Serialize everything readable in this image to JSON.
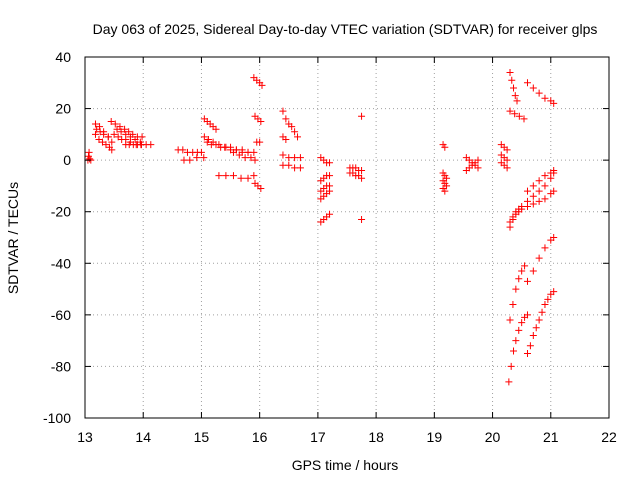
{
  "chart_data": {
    "type": "scatter",
    "title": "Day 063 of 2025, Sidereal Day-to-day VTEC variation (SDTVAR) for receiver glps",
    "xlabel": "GPS time / hours",
    "ylabel": "SDTVAR / TECUs",
    "xlim": [
      13,
      22
    ],
    "ylim": [
      -100,
      40
    ],
    "xticks": [
      "13",
      "14",
      "15",
      "16",
      "17",
      "18",
      "19",
      "20",
      "21",
      "22"
    ],
    "yticks": [
      "40",
      "20",
      "0",
      "-20",
      "-40",
      "-60",
      "-80",
      "-100"
    ],
    "grid": true,
    "marker": "+",
    "marker_color": "#ff0000",
    "series": [
      {
        "name": "s01",
        "x": [
          13.05,
          13.06,
          13.07,
          13.08,
          13.1
        ],
        "y": [
          0,
          1.5,
          3,
          0.5,
          0
        ]
      },
      {
        "name": "s02",
        "x": [
          13.18,
          13.25,
          13.32,
          13.4,
          13.46
        ],
        "y": [
          14,
          13,
          11,
          9,
          7
        ]
      },
      {
        "name": "s03",
        "x": [
          13.18,
          13.24,
          13.3,
          13.36,
          13.42,
          13.46
        ],
        "y": [
          10,
          8,
          7,
          6,
          5,
          4
        ]
      },
      {
        "name": "s04",
        "x": [
          13.2,
          13.26,
          13.32,
          13.4
        ],
        "y": [
          12,
          11,
          10,
          9
        ]
      },
      {
        "name": "s05",
        "x": [
          13.45,
          13.52,
          13.6,
          13.68,
          13.75,
          13.82,
          13.9,
          13.98
        ],
        "y": [
          15,
          14,
          13,
          12,
          11,
          10,
          9,
          9
        ]
      },
      {
        "name": "s06",
        "x": [
          13.55,
          13.62,
          13.7,
          13.78,
          13.86,
          13.95,
          14.05,
          14.13
        ],
        "y": [
          12,
          11,
          10,
          9,
          8,
          7,
          6,
          6
        ]
      },
      {
        "name": "s07",
        "x": [
          13.5,
          13.57,
          13.63,
          13.7,
          13.78,
          13.88,
          13.96
        ],
        "y": [
          10,
          9,
          8,
          8,
          7,
          6,
          6
        ]
      },
      {
        "name": "s08",
        "x": [
          13.7,
          13.76,
          13.83,
          13.9,
          13.97
        ],
        "y": [
          6,
          6,
          6,
          6,
          6
        ]
      },
      {
        "name": "s09",
        "x": [
          14.6,
          14.68,
          14.76,
          14.85,
          14.93,
          15.0
        ],
        "y": [
          4,
          4,
          3,
          3,
          3,
          3
        ]
      },
      {
        "name": "s10",
        "x": [
          14.7,
          14.8,
          14.92,
          15.04
        ],
        "y": [
          0,
          0,
          1,
          1
        ]
      },
      {
        "name": "s11",
        "x": [
          15.05,
          15.1,
          15.15,
          15.2,
          15.25
        ],
        "y": [
          16,
          15,
          14,
          13,
          12
        ]
      },
      {
        "name": "s12",
        "x": [
          15.05,
          15.12,
          15.2,
          15.3,
          15.4,
          15.5,
          15.6,
          15.7,
          15.8,
          15.9
        ],
        "y": [
          9,
          8,
          7,
          6,
          5,
          5,
          4,
          4,
          3,
          3
        ]
      },
      {
        "name": "s13",
        "x": [
          15.1,
          15.17,
          15.25,
          15.33,
          15.42,
          15.5,
          15.6,
          15.7,
          15.8
        ],
        "y": [
          7,
          6,
          6,
          5,
          5,
          4,
          4,
          3,
          3
        ]
      },
      {
        "name": "s14",
        "x": [
          15.3,
          15.42,
          15.55,
          15.68,
          15.8,
          15.9
        ],
        "y": [
          -6,
          -6,
          -6,
          -7,
          -7,
          -6
        ]
      },
      {
        "name": "s15",
        "x": [
          15.55,
          15.65,
          15.75,
          15.85,
          15.92
        ],
        "y": [
          3,
          2,
          1,
          1,
          0
        ]
      },
      {
        "name": "s16",
        "x": [
          15.9,
          15.95,
          16.0,
          16.04
        ],
        "y": [
          32,
          31,
          30,
          29
        ]
      },
      {
        "name": "s17",
        "x": [
          15.92,
          15.97,
          16.02
        ],
        "y": [
          17,
          16,
          15
        ]
      },
      {
        "name": "s18",
        "x": [
          15.92,
          15.97,
          16.02
        ],
        "y": [
          -9,
          -10,
          -11
        ]
      },
      {
        "name": "s19",
        "x": [
          15.95,
          16.0
        ],
        "y": [
          7,
          7
        ]
      },
      {
        "name": "s20",
        "x": [
          16.4,
          16.45,
          16.5,
          16.55,
          16.6,
          16.65
        ],
        "y": [
          19,
          16,
          14,
          13,
          11,
          9
        ]
      },
      {
        "name": "s21",
        "x": [
          16.4,
          16.5,
          16.6,
          16.7
        ],
        "y": [
          2,
          1,
          1,
          1
        ]
      },
      {
        "name": "s22",
        "x": [
          16.4,
          16.5,
          16.6,
          16.7
        ],
        "y": [
          -2,
          -2,
          -3,
          -3
        ]
      },
      {
        "name": "s23",
        "x": [
          16.4,
          16.45
        ],
        "y": [
          9,
          8
        ]
      },
      {
        "name": "s24",
        "x": [
          17.05,
          17.1,
          17.15,
          17.2
        ],
        "y": [
          1,
          0,
          -1,
          -1
        ]
      },
      {
        "name": "s25",
        "x": [
          17.05,
          17.1,
          17.15,
          17.2
        ],
        "y": [
          -8,
          -7,
          -6,
          -6
        ]
      },
      {
        "name": "s26",
        "x": [
          17.05,
          17.1,
          17.15,
          17.2
        ],
        "y": [
          -12,
          -11,
          -10,
          -10
        ]
      },
      {
        "name": "s27",
        "x": [
          17.05,
          17.1,
          17.15,
          17.2
        ],
        "y": [
          -15,
          -14,
          -13,
          -12
        ]
      },
      {
        "name": "s28",
        "x": [
          17.05,
          17.1,
          17.15,
          17.2
        ],
        "y": [
          -24,
          -23,
          -22,
          -21
        ]
      },
      {
        "name": "s29",
        "x": [
          17.55,
          17.6,
          17.65,
          17.7,
          17.75
        ],
        "y": [
          -3,
          -3,
          -3,
          -4,
          -4
        ]
      },
      {
        "name": "s30",
        "x": [
          17.55,
          17.6,
          17.65,
          17.7,
          17.75
        ],
        "y": [
          -5,
          -5,
          -6,
          -6,
          -7
        ]
      },
      {
        "name": "s31",
        "x": [
          17.75
        ],
        "y": [
          17
        ]
      },
      {
        "name": "s32",
        "x": [
          17.75
        ],
        "y": [
          -23
        ]
      },
      {
        "name": "s33",
        "x": [
          19.15,
          19.18
        ],
        "y": [
          6,
          5
        ]
      },
      {
        "name": "s34",
        "x": [
          19.15,
          19.18,
          19.21
        ],
        "y": [
          -5,
          -6,
          -7
        ]
      },
      {
        "name": "s35",
        "x": [
          19.15,
          19.18,
          19.21
        ],
        "y": [
          -8,
          -9,
          -10
        ]
      },
      {
        "name": "s36",
        "x": [
          19.15,
          19.18
        ],
        "y": [
          -11,
          -12
        ]
      },
      {
        "name": "s37",
        "x": [
          19.55,
          19.6,
          19.65,
          19.7,
          19.75
        ],
        "y": [
          -4,
          -3,
          -2,
          -1,
          0
        ]
      },
      {
        "name": "s38",
        "x": [
          19.55,
          19.6,
          19.65,
          19.7,
          19.75
        ],
        "y": [
          1,
          0,
          -1,
          -2,
          -3
        ]
      },
      {
        "name": "s39",
        "x": [
          20.15,
          20.2,
          20.25
        ],
        "y": [
          6,
          5,
          4
        ]
      },
      {
        "name": "s40",
        "x": [
          20.15,
          20.2,
          20.25
        ],
        "y": [
          2,
          1,
          0
        ]
      },
      {
        "name": "s41",
        "x": [
          20.15,
          20.2,
          20.25
        ],
        "y": [
          -1,
          -2,
          -3
        ]
      },
      {
        "name": "s42",
        "x": [
          20.3,
          20.33,
          20.36,
          20.39,
          20.42
        ],
        "y": [
          34,
          31,
          28,
          25,
          23
        ]
      },
      {
        "name": "s43",
        "x": [
          20.3,
          20.38,
          20.46,
          20.54
        ],
        "y": [
          19,
          18,
          17,
          16
        ]
      },
      {
        "name": "s44",
        "x": [
          20.6,
          20.7,
          20.8,
          20.9,
          21.0,
          21.05
        ],
        "y": [
          30,
          28,
          26,
          24,
          23,
          22
        ]
      },
      {
        "name": "s45",
        "x": [
          20.3,
          20.35,
          20.4,
          20.45,
          20.5,
          20.6,
          20.7,
          20.8,
          20.9,
          21.0,
          21.05
        ],
        "y": [
          -26,
          -23,
          -21,
          -20,
          -19,
          -18,
          -17,
          -16,
          -15,
          -13,
          -12
        ]
      },
      {
        "name": "s46",
        "x": [
          20.3,
          20.35,
          20.4,
          20.45,
          20.5,
          20.6,
          20.7,
          20.8,
          20.9,
          21.0,
          21.05
        ],
        "y": [
          -24,
          -22,
          -20,
          -19,
          -18,
          -16,
          -14,
          -12,
          -10,
          -7,
          -5
        ]
      },
      {
        "name": "s47",
        "x": [
          20.6,
          20.7,
          20.8,
          20.9,
          21.0,
          21.05
        ],
        "y": [
          -12,
          -10,
          -8,
          -6,
          -5,
          -4
        ]
      },
      {
        "name": "s48",
        "x": [
          20.3,
          20.35,
          20.4,
          20.45,
          20.5,
          20.55
        ],
        "y": [
          -62,
          -56,
          -50,
          -46,
          -43,
          -41
        ]
      },
      {
        "name": "s49",
        "x": [
          20.6,
          20.7,
          20.8,
          20.9,
          21.0,
          21.05
        ],
        "y": [
          -47,
          -43,
          -38,
          -34,
          -31,
          -30
        ]
      },
      {
        "name": "s50",
        "x": [
          20.28,
          20.32,
          20.36,
          20.4,
          20.45,
          20.5,
          20.55,
          20.6
        ],
        "y": [
          -86,
          -80,
          -74,
          -70,
          -66,
          -63,
          -61,
          -60
        ]
      },
      {
        "name": "s51",
        "x": [
          20.6,
          20.65,
          20.7,
          20.75,
          20.8,
          20.85,
          20.9,
          20.95,
          21.0,
          21.05
        ],
        "y": [
          -75,
          -72,
          -68,
          -65,
          -62,
          -59,
          -56,
          -54,
          -52,
          -51
        ]
      }
    ]
  }
}
